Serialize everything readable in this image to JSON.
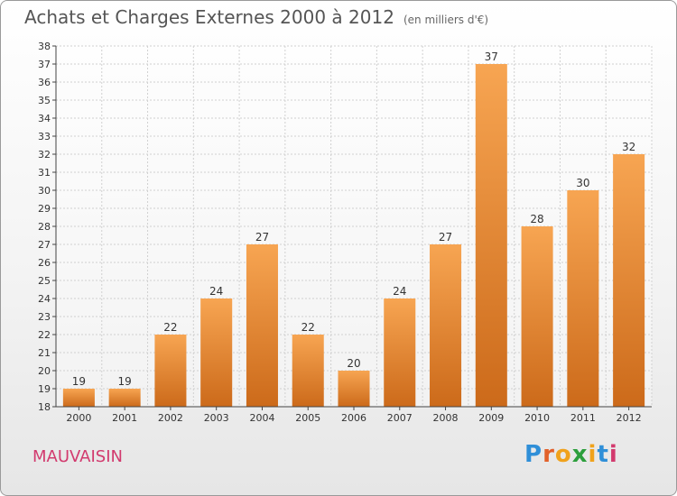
{
  "header": {
    "title": "Achats et Charges Externes 2000 à 2012",
    "unit": "(en milliers d'€)"
  },
  "footer": {
    "commune": "MAUVAISIN",
    "logo": "Proxiti"
  },
  "colors": {
    "bar_light": "#f7a552",
    "bar_dark": "#cc6a1a",
    "commune": "#d23a6e"
  },
  "chart_data": {
    "type": "bar",
    "title": "Achats et Charges Externes 2000 à 2012",
    "subtitle": "(en milliers d'€)",
    "xlabel": "",
    "ylabel": "",
    "categories": [
      "2000",
      "2001",
      "2002",
      "2003",
      "2004",
      "2005",
      "2006",
      "2007",
      "2008",
      "2009",
      "2010",
      "2011",
      "2012"
    ],
    "values": [
      19,
      19,
      22,
      24,
      27,
      22,
      20,
      24,
      27,
      37,
      28,
      30,
      32
    ],
    "ylim": [
      18,
      38
    ],
    "yticks": [
      18,
      19,
      20,
      21,
      22,
      23,
      24,
      25,
      26,
      27,
      28,
      29,
      30,
      31,
      32,
      33,
      34,
      35,
      36,
      37,
      38
    ],
    "grid": true,
    "legend": "none"
  }
}
